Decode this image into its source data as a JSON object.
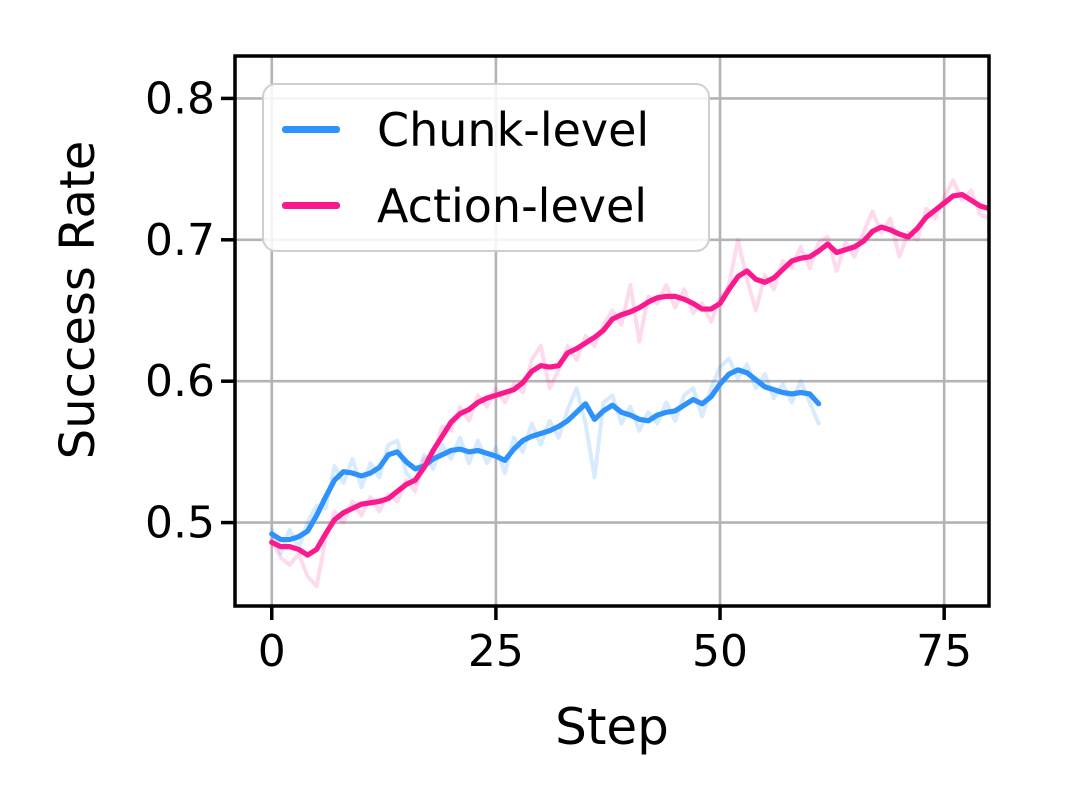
{
  "figure": {
    "background": "#ffffff",
    "grid_color": "#b4b4b4",
    "spine_color": "#000000",
    "text_color": "#000000",
    "legend_border_color": "#cfcfcf"
  },
  "chart_data": {
    "type": "line",
    "title": "",
    "xlabel": "Step",
    "ylabel": "Success Rate",
    "xlim": [
      -4.1,
      80.0
    ],
    "ylim": [
      0.441,
      0.83
    ],
    "xticks": [
      0,
      25,
      50,
      75
    ],
    "xtick_labels": [
      "0",
      "25",
      "50",
      "75"
    ],
    "yticks": [
      0.5,
      0.6,
      0.7,
      0.8
    ],
    "ytick_labels": [
      "0.5",
      "0.6",
      "0.7",
      "0.8"
    ],
    "grid": true,
    "legend_position": "upper-left",
    "series": [
      {
        "name": "Chunk-level",
        "color": "#2e92fb",
        "raw_color": "rgba(46,146,251,0.19)",
        "x_start": 0,
        "x_step": 1,
        "values": [
          0.492,
          0.488,
          0.488,
          0.49,
          0.494,
          0.505,
          0.518,
          0.53,
          0.536,
          0.535,
          0.533,
          0.535,
          0.539,
          0.548,
          0.55,
          0.543,
          0.538,
          0.54,
          0.545,
          0.548,
          0.551,
          0.552,
          0.55,
          0.551,
          0.549,
          0.547,
          0.544,
          0.552,
          0.558,
          0.561,
          0.563,
          0.565,
          0.568,
          0.572,
          0.578,
          0.584,
          0.573,
          0.579,
          0.583,
          0.578,
          0.576,
          0.573,
          0.572,
          0.576,
          0.578,
          0.579,
          0.583,
          0.587,
          0.584,
          0.589,
          0.598,
          0.605,
          0.608,
          0.606,
          0.601,
          0.596,
          0.594,
          0.592,
          0.591,
          0.592,
          0.591,
          0.584
        ],
        "raw_values": [
          0.495,
          0.478,
          0.495,
          0.482,
          0.5,
          0.512,
          0.51,
          0.54,
          0.528,
          0.545,
          0.525,
          0.542,
          0.532,
          0.555,
          0.558,
          0.535,
          0.528,
          0.548,
          0.538,
          0.555,
          0.545,
          0.56,
          0.542,
          0.558,
          0.542,
          0.553,
          0.535,
          0.56,
          0.55,
          0.57,
          0.555,
          0.572,
          0.56,
          0.58,
          0.595,
          0.57,
          0.532,
          0.585,
          0.59,
          0.57,
          0.582,
          0.565,
          0.578,
          0.57,
          0.585,
          0.572,
          0.59,
          0.595,
          0.575,
          0.595,
          0.61,
          0.616,
          0.602,
          0.612,
          0.595,
          0.605,
          0.588,
          0.598,
          0.585,
          0.6,
          0.585,
          0.57
        ]
      },
      {
        "name": "Action-level",
        "color": "#fa1a8e",
        "raw_color": "rgba(250,26,142,0.16)",
        "x_start": 0,
        "x_step": 1,
        "values": [
          0.486,
          0.483,
          0.483,
          0.481,
          0.477,
          0.481,
          0.492,
          0.502,
          0.507,
          0.51,
          0.513,
          0.514,
          0.515,
          0.517,
          0.522,
          0.527,
          0.53,
          0.539,
          0.551,
          0.561,
          0.571,
          0.577,
          0.58,
          0.585,
          0.588,
          0.59,
          0.592,
          0.594,
          0.599,
          0.607,
          0.611,
          0.61,
          0.611,
          0.62,
          0.623,
          0.627,
          0.631,
          0.636,
          0.644,
          0.647,
          0.649,
          0.652,
          0.656,
          0.659,
          0.66,
          0.66,
          0.658,
          0.655,
          0.651,
          0.651,
          0.655,
          0.665,
          0.674,
          0.678,
          0.672,
          0.67,
          0.673,
          0.679,
          0.685,
          0.687,
          0.688,
          0.692,
          0.697,
          0.691,
          0.693,
          0.695,
          0.699,
          0.706,
          0.709,
          0.707,
          0.704,
          0.702,
          0.708,
          0.716,
          0.721,
          0.726,
          0.731,
          0.732,
          0.728,
          0.724,
          0.722
        ],
        "raw_values": [
          0.488,
          0.475,
          0.47,
          0.478,
          0.462,
          0.455,
          0.488,
          0.508,
          0.5,
          0.515,
          0.505,
          0.518,
          0.508,
          0.52,
          0.515,
          0.53,
          0.522,
          0.545,
          0.548,
          0.568,
          0.565,
          0.582,
          0.572,
          0.59,
          0.582,
          0.595,
          0.585,
          0.598,
          0.592,
          0.615,
          0.625,
          0.595,
          0.608,
          0.625,
          0.615,
          0.632,
          0.625,
          0.64,
          0.65,
          0.64,
          0.668,
          0.628,
          0.66,
          0.655,
          0.668,
          0.652,
          0.665,
          0.648,
          0.655,
          0.642,
          0.658,
          0.668,
          0.7,
          0.672,
          0.65,
          0.675,
          0.665,
          0.685,
          0.68,
          0.695,
          0.68,
          0.698,
          0.702,
          0.678,
          0.698,
          0.688,
          0.705,
          0.72,
          0.705,
          0.715,
          0.688,
          0.705,
          0.7,
          0.722,
          0.715,
          0.73,
          0.742,
          0.728,
          0.735,
          0.718,
          0.715
        ]
      }
    ]
  }
}
